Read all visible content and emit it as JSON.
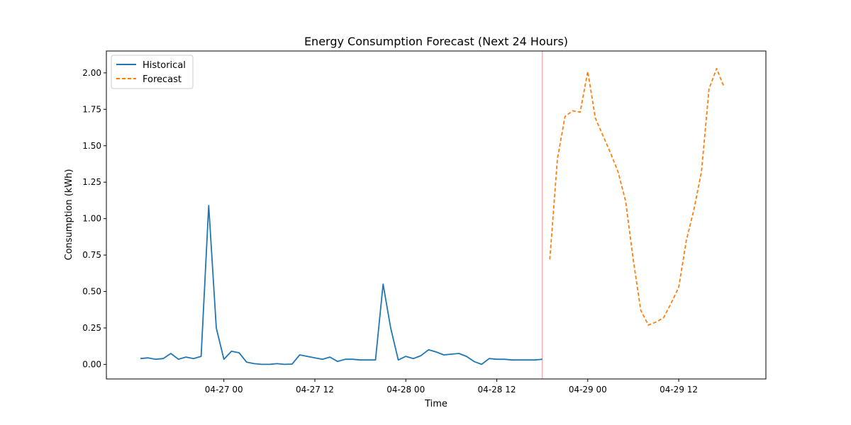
{
  "chart_data": {
    "type": "line",
    "title": "Energy Consumption Forecast (Next 24 Hours)",
    "xlabel": "Time",
    "ylabel": "Consumption (kWh)",
    "x_unit": "datetime",
    "xlim": [
      "2026-04-26 08:30",
      "2026-04-29 23:30"
    ],
    "ylim": [
      -0.1,
      2.15
    ],
    "x_ticks": [
      {
        "value": "2026-04-27 00:00",
        "label": "04-27 00"
      },
      {
        "value": "2026-04-27 12:00",
        "label": "04-27 12"
      },
      {
        "value": "2026-04-28 00:00",
        "label": "04-28 00"
      },
      {
        "value": "2026-04-28 12:00",
        "label": "04-28 12"
      },
      {
        "value": "2026-04-29 00:00",
        "label": "04-29 00"
      },
      {
        "value": "2026-04-29 12:00",
        "label": "04-29 12"
      }
    ],
    "y_ticks": [
      0.0,
      0.25,
      0.5,
      0.75,
      1.0,
      1.25,
      1.5,
      1.75,
      2.0
    ],
    "y_tick_labels": [
      "0.00",
      "0.25",
      "0.50",
      "0.75",
      "1.00",
      "1.25",
      "1.50",
      "1.75",
      "2.00"
    ],
    "grid": false,
    "legend_position": "top-left",
    "vline": {
      "x": "2026-04-28 18:00",
      "color": "#f4a6a6"
    },
    "series": [
      {
        "name": "Historical",
        "color": "#1f77b4",
        "style": "solid",
        "x": [
          "2026-04-26 13:00",
          "2026-04-26 14:00",
          "2026-04-26 15:00",
          "2026-04-26 16:00",
          "2026-04-26 17:00",
          "2026-04-26 18:00",
          "2026-04-26 19:00",
          "2026-04-26 20:00",
          "2026-04-26 21:00",
          "2026-04-26 22:00",
          "2026-04-26 23:00",
          "2026-04-27 00:00",
          "2026-04-27 01:00",
          "2026-04-27 02:00",
          "2026-04-27 03:00",
          "2026-04-27 04:00",
          "2026-04-27 05:00",
          "2026-04-27 06:00",
          "2026-04-27 07:00",
          "2026-04-27 08:00",
          "2026-04-27 09:00",
          "2026-04-27 10:00",
          "2026-04-27 11:00",
          "2026-04-27 12:00",
          "2026-04-27 13:00",
          "2026-04-27 14:00",
          "2026-04-27 15:00",
          "2026-04-27 16:00",
          "2026-04-27 17:00",
          "2026-04-27 18:00",
          "2026-04-27 19:00",
          "2026-04-27 20:00",
          "2026-04-27 21:00",
          "2026-04-27 22:00",
          "2026-04-27 23:00",
          "2026-04-28 00:00",
          "2026-04-28 01:00",
          "2026-04-28 02:00",
          "2026-04-28 03:00",
          "2026-04-28 04:00",
          "2026-04-28 05:00",
          "2026-04-28 06:00",
          "2026-04-28 07:00",
          "2026-04-28 08:00",
          "2026-04-28 09:00",
          "2026-04-28 10:00",
          "2026-04-28 11:00",
          "2026-04-28 12:00",
          "2026-04-28 13:00",
          "2026-04-28 14:00",
          "2026-04-28 15:00",
          "2026-04-28 16:00",
          "2026-04-28 17:00",
          "2026-04-28 18:00"
        ],
        "y": [
          0.04,
          0.045,
          0.035,
          0.04,
          0.075,
          0.035,
          0.05,
          0.04,
          0.055,
          1.09,
          0.25,
          0.035,
          0.09,
          0.08,
          0.015,
          0.005,
          0.0,
          0.0,
          0.005,
          0.0,
          0.002,
          0.065,
          0.055,
          0.045,
          0.035,
          0.05,
          0.02,
          0.035,
          0.035,
          0.03,
          0.03,
          0.03,
          0.55,
          0.25,
          0.03,
          0.055,
          0.04,
          0.06,
          0.1,
          0.085,
          0.065,
          0.07,
          0.075,
          0.055,
          0.02,
          0.0,
          0.04,
          0.035,
          0.035,
          0.03,
          0.03,
          0.03,
          0.03,
          0.035
        ]
      },
      {
        "name": "Forecast",
        "color": "#ff7f0e",
        "style": "dashed",
        "x": [
          "2026-04-28 19:00",
          "2026-04-28 20:00",
          "2026-04-28 21:00",
          "2026-04-28 22:00",
          "2026-04-28 23:00",
          "2026-04-29 00:00",
          "2026-04-29 01:00",
          "2026-04-29 02:00",
          "2026-04-29 03:00",
          "2026-04-29 04:00",
          "2026-04-29 05:00",
          "2026-04-29 06:00",
          "2026-04-29 07:00",
          "2026-04-29 08:00",
          "2026-04-29 09:00",
          "2026-04-29 10:00",
          "2026-04-29 11:00",
          "2026-04-29 12:00",
          "2026-04-29 13:00",
          "2026-04-29 14:00",
          "2026-04-29 15:00",
          "2026-04-29 16:00",
          "2026-04-29 17:00",
          "2026-04-29 18:00"
        ],
        "y": [
          0.72,
          1.41,
          1.7,
          1.74,
          1.73,
          2.01,
          1.69,
          1.57,
          1.45,
          1.32,
          1.12,
          0.72,
          0.37,
          0.27,
          0.29,
          0.32,
          0.42,
          0.53,
          0.85,
          1.06,
          1.32,
          1.89,
          2.03,
          1.9
        ]
      }
    ]
  }
}
